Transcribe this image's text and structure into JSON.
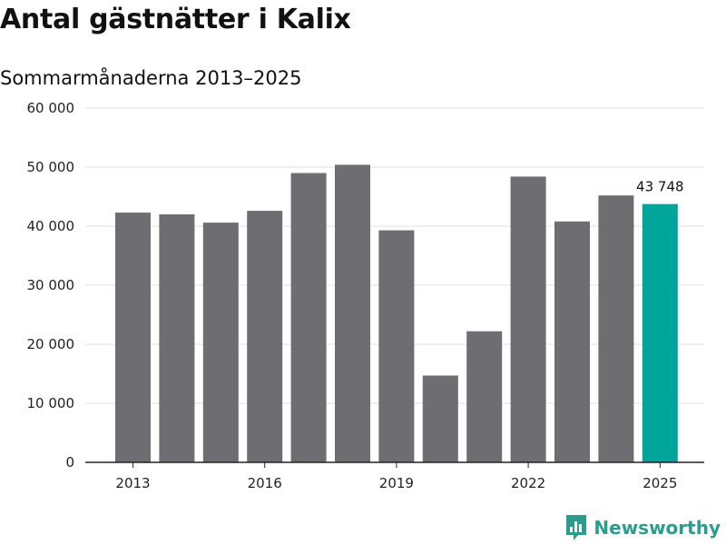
{
  "header": {
    "title": "Antal gästnätter i Kalix",
    "subtitle": "Sommarmånaderna 2013–2025"
  },
  "brand": {
    "name": "Newsworthy",
    "icon": "newsworthy-logo-icon"
  },
  "colors": {
    "bar": "#6e6d72",
    "highlight": "#00a59a",
    "grid": "#e0e0e0",
    "axis": "#222222"
  },
  "chart_data": {
    "type": "bar",
    "title": "Antal gästnätter i Kalix",
    "subtitle": "Sommarmånaderna 2013–2025",
    "categories": [
      "2013",
      "2014",
      "2015",
      "2016",
      "2017",
      "2018",
      "2019",
      "2020",
      "2021",
      "2022",
      "2023",
      "2024",
      "2025"
    ],
    "values": [
      42300,
      42000,
      40600,
      42600,
      49000,
      50400,
      39300,
      14700,
      22200,
      48400,
      40800,
      45200,
      43748
    ],
    "highlight_index": 12,
    "value_labels": [
      {
        "index": 12,
        "text": "43 748"
      }
    ],
    "x_tick_labels": [
      "2013",
      "2016",
      "2019",
      "2022",
      "2025"
    ],
    "y_ticks": [
      0,
      10000,
      20000,
      30000,
      40000,
      50000,
      60000
    ],
    "y_tick_labels": [
      "0",
      "10 000",
      "20 000",
      "30 000",
      "40 000",
      "50 000",
      "60 000"
    ],
    "ylim": [
      0,
      60000
    ],
    "grid": true,
    "xlabel": "",
    "ylabel": ""
  }
}
